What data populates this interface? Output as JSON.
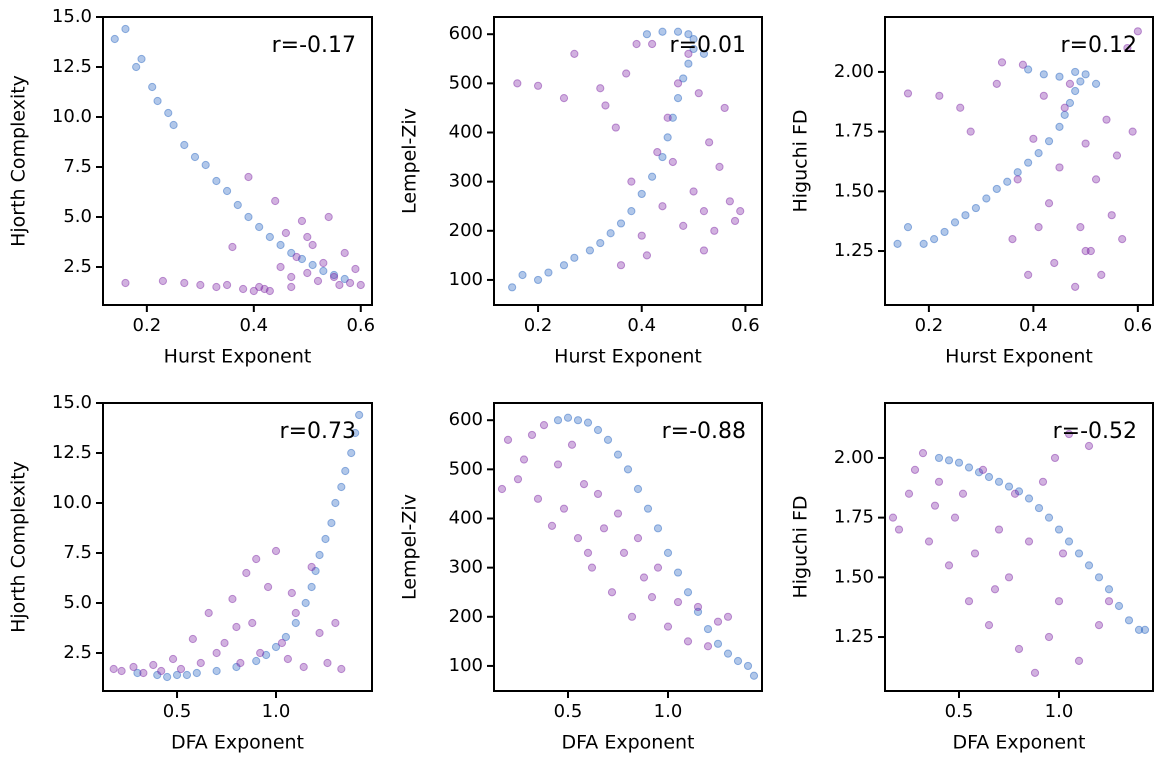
{
  "chart_data": [
    {
      "type": "scatter",
      "xlabel": "Hurst Exponent",
      "ylabel": "Hjorth Complexity",
      "annotation": "r=-0.17",
      "xlim": [
        0.118,
        0.621
      ],
      "xticks": [
        0.2,
        0.4,
        0.6
      ],
      "ylim": [
        0.6,
        15.0
      ],
      "yticks": [
        2.5,
        {
          "value": 5,
          "label": "5.0"
        },
        7.5,
        {
          "value": 10,
          "label": "10.0"
        },
        12.5,
        {
          "value": 15,
          "label": "15.0"
        }
      ],
      "series": [
        {
          "color": "#1f5fbf",
          "x": [
            0.14,
            0.16,
            0.18,
            0.19,
            0.21,
            0.22,
            0.24,
            0.25,
            0.27,
            0.29,
            0.31,
            0.33,
            0.35,
            0.37,
            0.39,
            0.41,
            0.43,
            0.45,
            0.47,
            0.49,
            0.51,
            0.53,
            0.55,
            0.57
          ],
          "values": [
            13.9,
            14.4,
            12.5,
            12.9,
            11.5,
            10.8,
            10.2,
            9.6,
            8.6,
            8.0,
            7.6,
            6.8,
            6.3,
            5.6,
            5.0,
            4.5,
            4.0,
            3.6,
            3.2,
            2.9,
            2.6,
            2.3,
            2.1,
            1.9
          ]
        },
        {
          "color": "#7b1fa2",
          "x": [
            0.16,
            0.23,
            0.27,
            0.3,
            0.33,
            0.35,
            0.36,
            0.38,
            0.4,
            0.42,
            0.44,
            0.45,
            0.46,
            0.47,
            0.48,
            0.49,
            0.5,
            0.51,
            0.52,
            0.53,
            0.54,
            0.55,
            0.56,
            0.57,
            0.58,
            0.59,
            0.6,
            0.39,
            0.43,
            0.41,
            0.47,
            0.5
          ],
          "values": [
            1.7,
            1.8,
            1.7,
            1.6,
            1.5,
            1.6,
            3.5,
            1.4,
            1.3,
            1.4,
            5.8,
            2.5,
            4.2,
            1.5,
            3.0,
            4.8,
            2.2,
            3.6,
            1.8,
            2.7,
            5.0,
            2.0,
            1.6,
            3.2,
            1.7,
            2.4,
            1.6,
            7.0,
            1.3,
            1.5,
            2.0,
            4.0
          ]
        }
      ]
    },
    {
      "type": "scatter",
      "xlabel": "Hurst Exponent",
      "ylabel": "Lempel-Ziv",
      "annotation": "r=0.01",
      "xlim": [
        0.115,
        0.632
      ],
      "xticks": [
        0.2,
        0.4,
        0.6
      ],
      "ylim": [
        49,
        635
      ],
      "yticks": [
        100,
        200,
        300,
        400,
        500,
        600
      ],
      "series": [
        {
          "color": "#1f5fbf",
          "x": [
            0.15,
            0.17,
            0.2,
            0.22,
            0.25,
            0.27,
            0.3,
            0.32,
            0.34,
            0.36,
            0.38,
            0.4,
            0.42,
            0.44,
            0.45,
            0.46,
            0.47,
            0.48,
            0.49,
            0.5,
            0.5,
            0.49,
            0.47,
            0.44,
            0.41,
            0.52
          ],
          "values": [
            85,
            110,
            100,
            115,
            130,
            145,
            160,
            175,
            195,
            215,
            240,
            275,
            310,
            350,
            390,
            430,
            470,
            510,
            540,
            570,
            590,
            600,
            605,
            605,
            600,
            560
          ]
        },
        {
          "color": "#7b1fa2",
          "x": [
            0.16,
            0.2,
            0.25,
            0.27,
            0.32,
            0.33,
            0.35,
            0.37,
            0.38,
            0.4,
            0.41,
            0.42,
            0.44,
            0.45,
            0.46,
            0.48,
            0.49,
            0.5,
            0.51,
            0.52,
            0.53,
            0.54,
            0.55,
            0.56,
            0.57,
            0.58,
            0.59,
            0.36,
            0.43,
            0.47,
            0.39,
            0.52
          ],
          "values": [
            500,
            495,
            470,
            560,
            490,
            455,
            410,
            520,
            300,
            190,
            150,
            580,
            250,
            430,
            340,
            210,
            560,
            280,
            480,
            240,
            380,
            200,
            330,
            450,
            260,
            220,
            240,
            130,
            360,
            500,
            580,
            160
          ]
        }
      ]
    },
    {
      "type": "scatter",
      "xlabel": "Hurst Exponent",
      "ylabel": "Higuchi FD",
      "annotation": "r=0.12",
      "xlim": [
        0.116,
        0.629
      ],
      "xticks": [
        0.2,
        0.4,
        0.6
      ],
      "ylim": [
        1.024,
        2.23
      ],
      "yticks": [
        1.25,
        {
          "value": 1.5,
          "label": "1.50"
        },
        1.75,
        {
          "value": 2,
          "label": "2.00"
        }
      ],
      "series": [
        {
          "color": "#1f5fbf",
          "x": [
            0.14,
            0.16,
            0.19,
            0.21,
            0.23,
            0.25,
            0.27,
            0.29,
            0.31,
            0.33,
            0.35,
            0.37,
            0.39,
            0.41,
            0.43,
            0.45,
            0.46,
            0.47,
            0.48,
            0.49,
            0.5,
            0.48,
            0.45,
            0.42,
            0.39,
            0.52
          ],
          "values": [
            1.28,
            1.35,
            1.28,
            1.3,
            1.33,
            1.37,
            1.4,
            1.43,
            1.47,
            1.51,
            1.54,
            1.58,
            1.62,
            1.66,
            1.71,
            1.77,
            1.82,
            1.87,
            1.92,
            1.96,
            1.99,
            2.0,
            1.98,
            1.99,
            2.01,
            1.95
          ]
        },
        {
          "color": "#7b1fa2",
          "x": [
            0.16,
            0.22,
            0.26,
            0.28,
            0.33,
            0.34,
            0.36,
            0.38,
            0.39,
            0.4,
            0.42,
            0.43,
            0.44,
            0.45,
            0.46,
            0.48,
            0.49,
            0.5,
            0.51,
            0.52,
            0.53,
            0.54,
            0.55,
            0.56,
            0.57,
            0.58,
            0.59,
            0.6,
            0.37,
            0.41,
            0.47,
            0.5
          ],
          "values": [
            1.91,
            1.9,
            1.85,
            1.75,
            1.95,
            2.04,
            1.3,
            2.03,
            1.15,
            1.72,
            1.9,
            1.45,
            1.2,
            1.6,
            1.85,
            1.1,
            1.35,
            1.7,
            1.25,
            1.55,
            1.15,
            1.8,
            1.4,
            1.65,
            1.3,
            2.1,
            1.75,
            2.17,
            1.55,
            1.35,
            1.95,
            1.25
          ]
        }
      ]
    },
    {
      "type": "scatter",
      "xlabel": "DFA Exponent",
      "ylabel": "Hjorth Complexity",
      "annotation": "r=0.73",
      "xlim": [
        0.126,
        1.485
      ],
      "xticks": [
        0.5,
        {
          "value": 1,
          "label": "1.0"
        }
      ],
      "ylim": [
        0.6,
        15.0
      ],
      "yticks": [
        2.5,
        {
          "value": 5,
          "label": "5.0"
        },
        7.5,
        {
          "value": 10,
          "label": "10.0"
        },
        12.5,
        {
          "value": 15,
          "label": "15.0"
        }
      ],
      "series": [
        {
          "color": "#1f5fbf",
          "x": [
            0.3,
            0.4,
            0.5,
            0.6,
            0.7,
            0.8,
            0.9,
            0.95,
            1.0,
            1.05,
            1.1,
            1.15,
            1.18,
            1.2,
            1.22,
            1.25,
            1.28,
            1.3,
            1.33,
            1.35,
            1.38,
            1.4,
            1.42,
            0.45,
            0.55
          ],
          "values": [
            1.5,
            1.4,
            1.4,
            1.5,
            1.6,
            1.8,
            2.1,
            2.4,
            2.8,
            3.3,
            4.0,
            5.0,
            5.8,
            6.6,
            7.4,
            8.2,
            9.0,
            10.0,
            10.8,
            11.6,
            12.5,
            13.5,
            14.4,
            1.3,
            1.4
          ]
        },
        {
          "color": "#7b1fa2",
          "x": [
            0.18,
            0.22,
            0.28,
            0.33,
            0.38,
            0.42,
            0.48,
            0.52,
            0.58,
            0.62,
            0.66,
            0.7,
            0.74,
            0.78,
            0.82,
            0.85,
            0.88,
            0.92,
            0.96,
            1.0,
            1.03,
            1.06,
            1.1,
            1.14,
            1.18,
            1.22,
            1.26,
            1.3,
            1.33,
            0.9,
            0.8,
            1.08
          ],
          "values": [
            1.7,
            1.6,
            1.8,
            1.5,
            1.9,
            1.6,
            2.2,
            1.7,
            3.2,
            2.0,
            4.5,
            2.5,
            3.0,
            5.2,
            2.0,
            6.5,
            4.0,
            2.5,
            5.8,
            7.6,
            3.0,
            2.2,
            4.5,
            1.8,
            6.8,
            3.5,
            2.0,
            4.0,
            1.7,
            7.2,
            3.8,
            5.5
          ]
        }
      ]
    },
    {
      "type": "scatter",
      "xlabel": "DFA Exponent",
      "ylabel": "Lempel-Ziv",
      "annotation": "r=-0.88",
      "xlim": [
        0.13,
        1.47
      ],
      "xticks": [
        0.5,
        {
          "value": 1,
          "label": "1.0"
        }
      ],
      "ylim": [
        49,
        635
      ],
      "yticks": [
        100,
        200,
        300,
        400,
        500,
        600
      ],
      "series": [
        {
          "color": "#1f5fbf",
          "x": [
            0.45,
            0.5,
            0.55,
            0.6,
            0.65,
            0.7,
            0.75,
            0.8,
            0.85,
            0.9,
            0.95,
            1.0,
            1.05,
            1.1,
            1.15,
            1.2,
            1.25,
            1.3,
            1.35,
            1.4,
            1.43
          ],
          "values": [
            600,
            605,
            600,
            595,
            580,
            560,
            530,
            500,
            460,
            420,
            380,
            330,
            290,
            250,
            210,
            175,
            145,
            125,
            110,
            100,
            80
          ]
        },
        {
          "color": "#7b1fa2",
          "x": [
            0.17,
            0.2,
            0.25,
            0.28,
            0.32,
            0.35,
            0.38,
            0.42,
            0.45,
            0.48,
            0.52,
            0.55,
            0.58,
            0.62,
            0.65,
            0.68,
            0.72,
            0.75,
            0.78,
            0.82,
            0.85,
            0.88,
            0.92,
            0.95,
            1.0,
            1.05,
            1.1,
            1.15,
            1.2,
            1.25,
            1.3,
            0.6
          ],
          "values": [
            460,
            560,
            480,
            520,
            570,
            440,
            590,
            385,
            510,
            420,
            550,
            360,
            470,
            300,
            450,
            380,
            250,
            410,
            330,
            200,
            360,
            280,
            240,
            300,
            180,
            230,
            150,
            220,
            140,
            190,
            200,
            330
          ]
        }
      ]
    },
    {
      "type": "scatter",
      "xlabel": "DFA Exponent",
      "ylabel": "Higuchi FD",
      "annotation": "r=-0.52",
      "xlim": [
        0.13,
        1.47
      ],
      "xticks": [
        0.5,
        {
          "value": 1,
          "label": "1.0"
        }
      ],
      "ylim": [
        1.024,
        2.23
      ],
      "yticks": [
        1.25,
        {
          "value": 1.5,
          "label": "1.50"
        },
        1.75,
        {
          "value": 2,
          "label": "2.00"
        }
      ],
      "series": [
        {
          "color": "#1f5fbf",
          "x": [
            0.4,
            0.45,
            0.5,
            0.55,
            0.6,
            0.65,
            0.7,
            0.75,
            0.8,
            0.85,
            0.9,
            0.95,
            1.0,
            1.05,
            1.1,
            1.15,
            1.2,
            1.25,
            1.3,
            1.35,
            1.4,
            1.43
          ],
          "values": [
            2.0,
            1.99,
            1.98,
            1.96,
            1.94,
            1.92,
            1.9,
            1.88,
            1.86,
            1.83,
            1.79,
            1.75,
            1.7,
            1.65,
            1.6,
            1.55,
            1.5,
            1.45,
            1.38,
            1.32,
            1.28,
            1.28
          ]
        },
        {
          "color": "#7b1fa2",
          "x": [
            0.17,
            0.2,
            0.25,
            0.28,
            0.32,
            0.35,
            0.38,
            0.4,
            0.45,
            0.48,
            0.52,
            0.55,
            0.58,
            0.62,
            0.65,
            0.7,
            0.75,
            0.8,
            0.85,
            0.88,
            0.92,
            0.95,
            1.0,
            1.05,
            1.1,
            1.15,
            1.2,
            0.78,
            1.02,
            0.68,
            1.25,
            0.98
          ],
          "values": [
            1.75,
            1.7,
            1.85,
            1.95,
            2.02,
            1.65,
            1.8,
            1.9,
            1.55,
            1.75,
            1.85,
            1.4,
            1.6,
            1.95,
            1.3,
            1.7,
            1.5,
            1.2,
            1.65,
            1.1,
            1.9,
            1.25,
            1.4,
            2.1,
            1.15,
            2.05,
            1.3,
            1.85,
            1.6,
            1.45,
            1.4,
            2.0
          ]
        }
      ]
    }
  ]
}
